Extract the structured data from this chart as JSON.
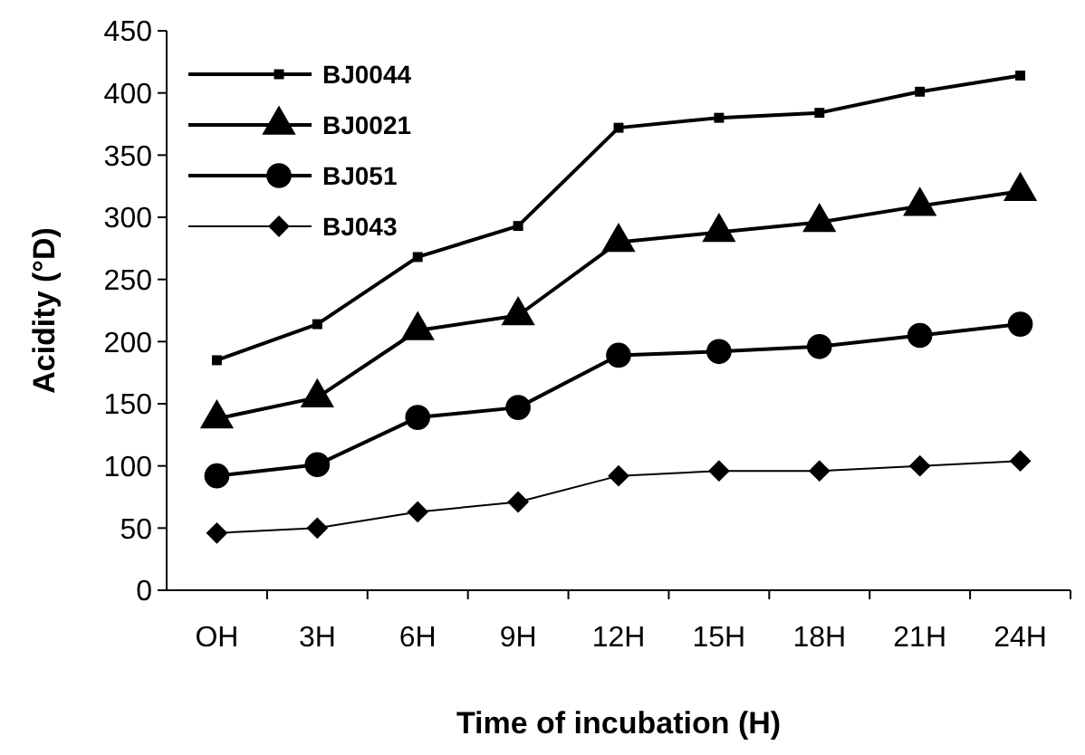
{
  "chart_data": {
    "type": "line",
    "xlabel": "Time of incubation (H)",
    "ylabel": "Acidity (°D)",
    "categories": [
      "OH",
      "3H",
      "6H",
      "9H",
      "12H",
      "15H",
      "18H",
      "21H",
      "24H"
    ],
    "ylim": [
      0,
      450
    ],
    "yticks": [
      0,
      50,
      100,
      150,
      200,
      250,
      300,
      350,
      400,
      450
    ],
    "grid": false,
    "legend": "top left",
    "line_style": "solid",
    "series": [
      {
        "name": "BJ0044",
        "color": "#000000",
        "marker": "square",
        "values": [
          185,
          214,
          268,
          293,
          372,
          380,
          384,
          401,
          414
        ]
      },
      {
        "name": "BJ0021",
        "color": "#000000",
        "marker": "triangle",
        "values": [
          138,
          155,
          209,
          221,
          280,
          288,
          296,
          309,
          321
        ]
      },
      {
        "name": "BJ051",
        "color": "#000000",
        "marker": "circle",
        "values": [
          92,
          101,
          139,
          147,
          189,
          192,
          196,
          205,
          214
        ]
      },
      {
        "name": "BJ043",
        "color": "#000000",
        "marker": "diamond",
        "values": [
          46,
          50,
          63,
          71,
          92,
          96,
          96,
          100,
          104
        ]
      }
    ]
  }
}
